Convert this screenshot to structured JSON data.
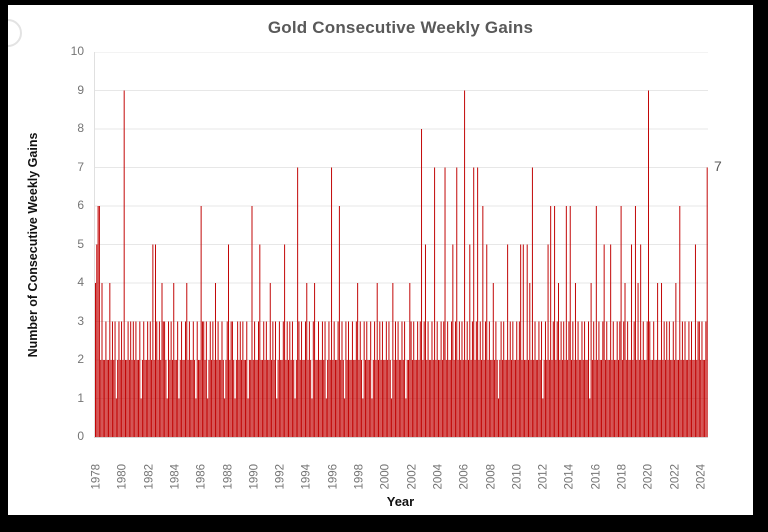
{
  "chart_data": {
    "type": "bar",
    "title": "Gold Consecutive Weekly Gains",
    "xlabel": "Year",
    "ylabel": "Number of Consecutive Weekly Gains",
    "ylim": [
      0,
      10
    ],
    "yticks": [
      0,
      1,
      2,
      3,
      4,
      5,
      6,
      7,
      8,
      9,
      10
    ],
    "xticks": [
      "1978",
      "1980",
      "1982",
      "1984",
      "1986",
      "1988",
      "1990",
      "1992",
      "1994",
      "1996",
      "1998",
      "2000",
      "2002",
      "2004",
      "2006",
      "2008",
      "2010",
      "2012",
      "2014",
      "2016",
      "2018",
      "2020",
      "2022",
      "2024"
    ],
    "grid": "horizontal",
    "legend": "none",
    "bar_color": "#c00000",
    "gridline_color": "#e7e7e7",
    "annotation": {
      "text": "7",
      "value": 7,
      "position": "right of final bar (latest streak in 2024)"
    },
    "series_note": "Each bar is one consecutive-weekly-gain streak for gold, 1978-2024; heights estimated from plot",
    "values": [
      4,
      5,
      6,
      6,
      2,
      4,
      2,
      2,
      3,
      2,
      2,
      4,
      2,
      3,
      2,
      3,
      1,
      2,
      3,
      2,
      3,
      2,
      9,
      2,
      2,
      3,
      2,
      3,
      2,
      3,
      2,
      3,
      2,
      2,
      3,
      1,
      2,
      3,
      2,
      2,
      3,
      2,
      3,
      2,
      5,
      2,
      5,
      3,
      2,
      3,
      2,
      4,
      3,
      3,
      2,
      1,
      3,
      2,
      3,
      2,
      4,
      2,
      2,
      3,
      1,
      2,
      3,
      2,
      2,
      3,
      4,
      2,
      3,
      2,
      2,
      3,
      2,
      1,
      3,
      2,
      2,
      6,
      3,
      3,
      2,
      3,
      1,
      2,
      3,
      2,
      3,
      2,
      4,
      2,
      3,
      2,
      2,
      3,
      2,
      1,
      2,
      3,
      5,
      2,
      3,
      3,
      2,
      1,
      2,
      3,
      2,
      3,
      2,
      3,
      2,
      2,
      3,
      1,
      2,
      2,
      6,
      2,
      3,
      2,
      2,
      3,
      5,
      2,
      2,
      3,
      2,
      3,
      2,
      2,
      4,
      2,
      3,
      2,
      3,
      1,
      2,
      3,
      2,
      2,
      3,
      5,
      2,
      3,
      2,
      3,
      2,
      3,
      2,
      1,
      2,
      7,
      3,
      2,
      3,
      2,
      2,
      3,
      4,
      2,
      3,
      2,
      1,
      3,
      4,
      2,
      2,
      3,
      2,
      2,
      3,
      2,
      3,
      1,
      2,
      3,
      2,
      7,
      2,
      3,
      2,
      2,
      3,
      6,
      2,
      3,
      2,
      1,
      3,
      2,
      3,
      2,
      2,
      3,
      2,
      2,
      3,
      4,
      2,
      3,
      2,
      1,
      3,
      2,
      3,
      2,
      2,
      3,
      1,
      2,
      3,
      2,
      4,
      2,
      3,
      2,
      3,
      2,
      2,
      3,
      2,
      3,
      2,
      1,
      4,
      2,
      3,
      2,
      3,
      2,
      2,
      3,
      2,
      3,
      1,
      2,
      2,
      4,
      3,
      2,
      3,
      2,
      2,
      3,
      2,
      3,
      8,
      2,
      3,
      5,
      2,
      3,
      2,
      2,
      3,
      2,
      7,
      2,
      3,
      2,
      2,
      3,
      2,
      3,
      7,
      2,
      3,
      2,
      2,
      3,
      5,
      2,
      3,
      7,
      2,
      3,
      2,
      3,
      2,
      9,
      2,
      3,
      2,
      5,
      2,
      3,
      7,
      2,
      3,
      7,
      2,
      3,
      2,
      6,
      2,
      3,
      5,
      2,
      3,
      2,
      2,
      4,
      2,
      3,
      2,
      1,
      2,
      3,
      2,
      3,
      2,
      2,
      5,
      2,
      3,
      2,
      3,
      2,
      2,
      3,
      2,
      3,
      5,
      2,
      5,
      2,
      2,
      5,
      2,
      4,
      2,
      7,
      2,
      3,
      2,
      2,
      3,
      2,
      3,
      1,
      2,
      3,
      2,
      5,
      2,
      6,
      2,
      3,
      6,
      2,
      3,
      4,
      2,
      3,
      2,
      3,
      2,
      6,
      2,
      3,
      6,
      2,
      3,
      2,
      4,
      2,
      3,
      2,
      2,
      3,
      2,
      3,
      2,
      2,
      3,
      1,
      4,
      2,
      3,
      2,
      6,
      2,
      3,
      2,
      2,
      3,
      5,
      2,
      3,
      2,
      2,
      5,
      2,
      3,
      2,
      2,
      3,
      2,
      3,
      6,
      2,
      3,
      4,
      2,
      3,
      2,
      2,
      5,
      2,
      3,
      6,
      2,
      4,
      2,
      5,
      2,
      3,
      2,
      2,
      3,
      9,
      3,
      2,
      2,
      3,
      2,
      2,
      4,
      2,
      2,
      4,
      2,
      3,
      2,
      3,
      2,
      3,
      2,
      2,
      3,
      2,
      4,
      2,
      2,
      6,
      2,
      3,
      2,
      3,
      2,
      2,
      3,
      2,
      3,
      2,
      2,
      5,
      2,
      3,
      3,
      2,
      3,
      2,
      2,
      3,
      7
    ]
  }
}
